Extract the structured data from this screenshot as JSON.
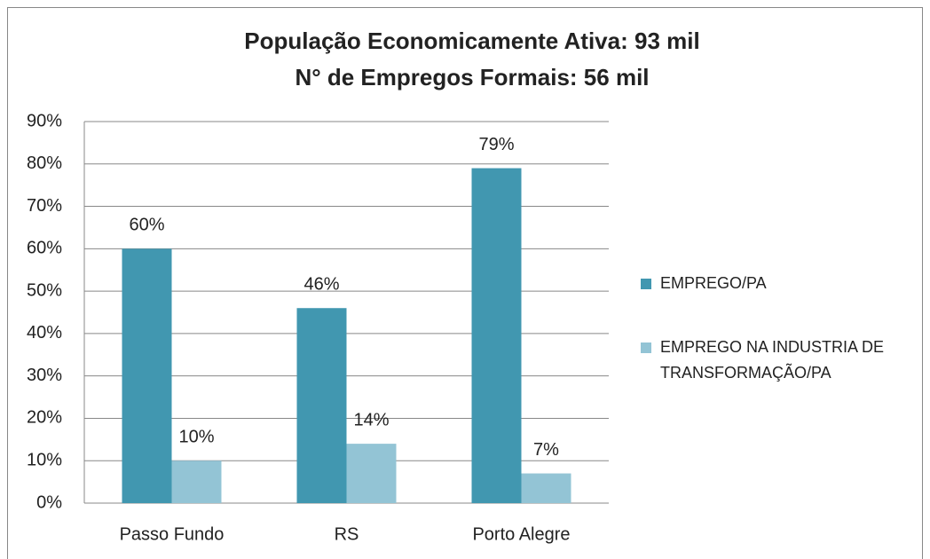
{
  "chart_data": {
    "type": "bar",
    "title": [
      "População Economicamente  Ativa: 93 mil",
      "N° de Empregos Formais: 56 mil"
    ],
    "categories": [
      "Passo Fundo",
      "RS",
      "Porto Alegre"
    ],
    "series": [
      {
        "name": "EMPREGO/PA",
        "color": "#4197b0",
        "values": [
          60,
          46,
          79
        ],
        "value_labels": [
          "60%",
          "46%",
          "79%"
        ]
      },
      {
        "name": "EMPREGO NA INDUSTRIA DE TRANSFORMAÇÃO/PA",
        "color": "#93c4d5",
        "values": [
          10,
          14,
          7
        ],
        "value_labels": [
          "10%",
          "14%",
          "7%"
        ]
      }
    ],
    "ylim": [
      0,
      90
    ],
    "yticks": [
      {
        "value": 0,
        "label": "0%"
      },
      {
        "value": 10,
        "label": "10%"
      },
      {
        "value": 20,
        "label": "20%"
      },
      {
        "value": 30,
        "label": "30%"
      },
      {
        "value": 40,
        "label": "40%"
      },
      {
        "value": 50,
        "label": "50%"
      },
      {
        "value": 60,
        "label": "60%"
      },
      {
        "value": 70,
        "label": "70%"
      },
      {
        "value": 80,
        "label": "80%"
      },
      {
        "value": 90,
        "label": "90%"
      }
    ],
    "grid": true,
    "legend": "right"
  }
}
